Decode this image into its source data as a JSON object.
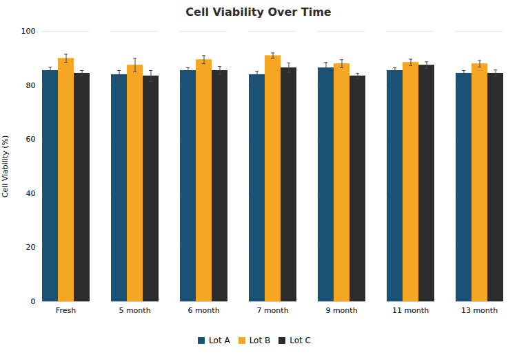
{
  "chart_data": {
    "type": "bar",
    "title": "Cell Viability Over Time",
    "ylabel": "Cell Viability (%)",
    "categories": [
      "Fresh",
      "5 month",
      "6 month",
      "7 month",
      "9 month",
      "11 month",
      "13 month"
    ],
    "series": [
      {
        "name": "Lot A",
        "color": "#1a5276",
        "values": [
          85.5,
          84.0,
          85.5,
          84.0,
          86.5,
          85.5,
          84.5
        ],
        "errors": [
          1.2,
          1.5,
          1.0,
          1.2,
          2.0,
          1.0,
          1.0
        ]
      },
      {
        "name": "Lot B",
        "color": "#f5a623",
        "values": [
          90.0,
          87.5,
          89.5,
          91.0,
          88.0,
          88.5,
          88.0
        ],
        "errors": [
          1.5,
          2.5,
          1.5,
          1.0,
          1.5,
          1.2,
          1.2
        ]
      },
      {
        "name": "Lot C",
        "color": "#2c2c2c",
        "values": [
          84.5,
          83.5,
          85.5,
          86.5,
          83.5,
          87.5,
          84.5
        ],
        "errors": [
          1.0,
          2.0,
          1.5,
          1.8,
          1.0,
          1.2,
          1.2
        ]
      }
    ],
    "ylim": [
      0,
      100
    ],
    "yticks": [
      0,
      20,
      40,
      60,
      80,
      100
    ],
    "grid": true,
    "legend": "bottom"
  }
}
